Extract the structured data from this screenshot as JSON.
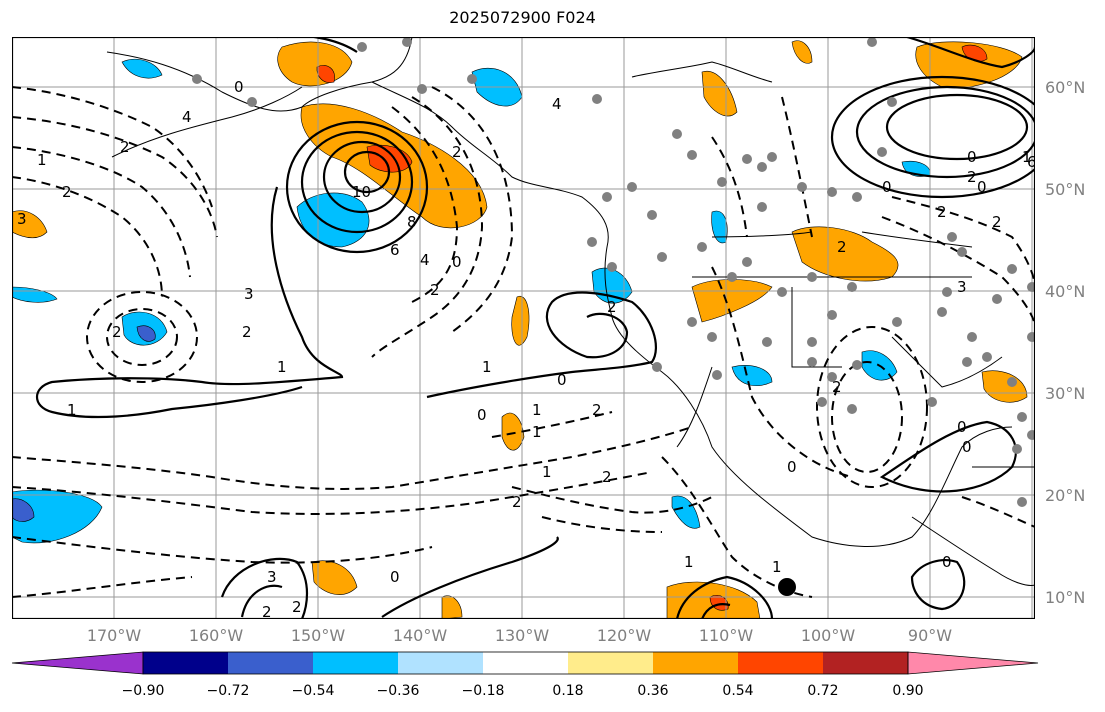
{
  "title": "2025072900 F024",
  "lat_labels": [
    "60°N",
    "50°N",
    "40°N",
    "30°N",
    "20°N",
    "10°N"
  ],
  "lon_labels": [
    "170°W",
    "160°W",
    "150°W",
    "140°W",
    "130°W",
    "120°W",
    "110°W",
    "100°W",
    "90°W"
  ],
  "colorbar": {
    "ticks": [
      "−0.90",
      "−0.72",
      "−0.54",
      "−0.36",
      "−0.18",
      "0.18",
      "0.36",
      "0.54",
      "0.72",
      "0.90"
    ],
    "colors": [
      "#9a32cd",
      "#00008b",
      "#3a5fcd",
      "#00bfff",
      "#b0e2ff",
      "#ffffff",
      "#ffec8b",
      "#ffa500",
      "#ff4500",
      "#b22222",
      "#ff88aa"
    ]
  },
  "contour_labels": [
    "10",
    "8",
    "6",
    "4",
    "2",
    "2",
    "1",
    "1",
    "1",
    "0",
    "0",
    "0",
    "1",
    "2",
    "3",
    "4",
    "2",
    "2",
    "1",
    "0",
    "2",
    "3",
    "4",
    "2",
    "1",
    "1",
    "0",
    "0",
    "2",
    "1",
    "2",
    "0",
    "0",
    "2",
    "1",
    "3",
    "2",
    "2",
    "6",
    "2",
    "0",
    "0",
    "2",
    "2",
    "3",
    "0",
    "1",
    "2",
    "0",
    "2"
  ],
  "map_extent": {
    "lon": [
      -180,
      -80
    ],
    "lat": [
      7,
      65
    ]
  }
}
